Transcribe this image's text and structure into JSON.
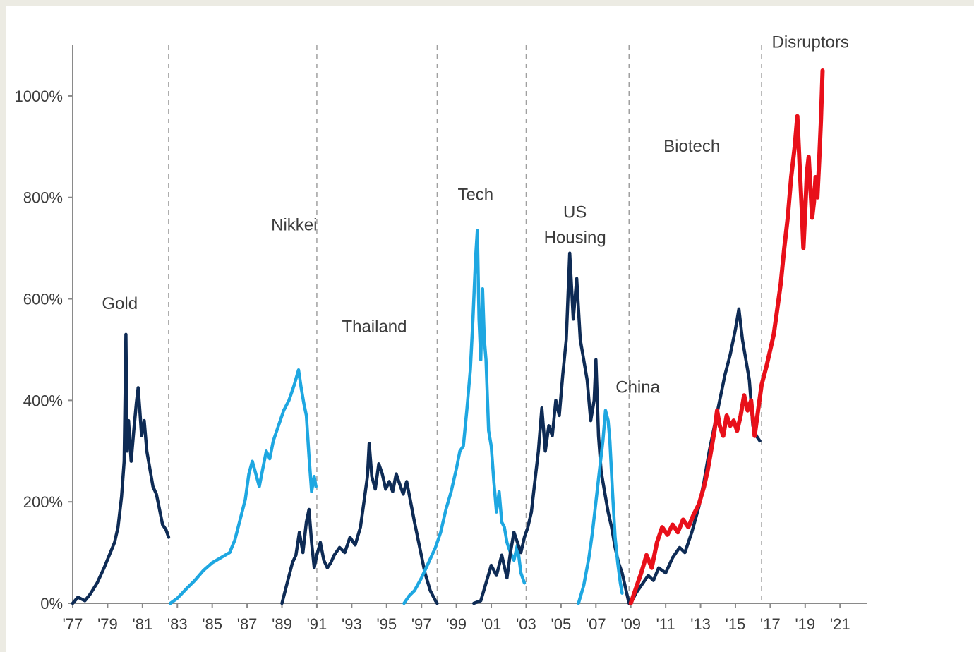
{
  "chart_data": {
    "type": "line",
    "title": "",
    "xlabel": "",
    "ylabel": "",
    "xlim": [
      1977,
      2021.8
    ],
    "ylim": [
      0,
      1100
    ],
    "y_ticks": [
      0,
      200,
      400,
      600,
      800,
      1000
    ],
    "y_tick_labels": [
      "0%",
      "200%",
      "400%",
      "600%",
      "800%",
      "1000%"
    ],
    "x_ticks": [
      1977,
      1979,
      1981,
      1983,
      1985,
      1987,
      1989,
      1991,
      1993,
      1995,
      1997,
      1999,
      2001,
      2003,
      2005,
      2007,
      2009,
      2011,
      2013,
      2015,
      2017,
      2019,
      2021
    ],
    "x_tick_labels": [
      "'77",
      "'79",
      "'81",
      "'83",
      "'85",
      "'87",
      "'89",
      "'91",
      "'93",
      "'95",
      "'97",
      "'99",
      "'01",
      "'03",
      "'05",
      "'07",
      "'09",
      "'11",
      "'13",
      "'15",
      "'17",
      "'19",
      "'21"
    ],
    "grid": false,
    "divider_lines_x": [
      1982.5,
      1991.0,
      1997.9,
      2003.0,
      2008.9,
      2016.5
    ],
    "colors": {
      "dark": "#0e2b55",
      "light": "#1ea7e1",
      "red": "#e8101a",
      "axis": "#8a8a8a",
      "divider": "#a0a0a0"
    },
    "annotations": [
      {
        "text": "Gold",
        "x": 1979.7,
        "y": 580
      },
      {
        "text": "Nikkei",
        "x": 1989.7,
        "y": 735
      },
      {
        "text": "Thailand",
        "x": 1994.3,
        "y": 535
      },
      {
        "text": "Tech",
        "x": 2000.1,
        "y": 795
      },
      {
        "text": "US",
        "x": 2005.8,
        "y": 760
      },
      {
        "text": "Housing",
        "x": 2005.8,
        "y": 710
      },
      {
        "text": "China",
        "x": 2009.4,
        "y": 415
      },
      {
        "text": "Biotech",
        "x": 2012.5,
        "y": 890
      },
      {
        "text": "Disruptors",
        "x": 2019.3,
        "y": 1095
      }
    ],
    "series": [
      {
        "color": "dark",
        "points": [
          [
            1977.0,
            0
          ],
          [
            1977.3,
            12
          ],
          [
            1977.7,
            5
          ],
          [
            1978.0,
            18
          ],
          [
            1978.4,
            40
          ],
          [
            1978.8,
            70
          ],
          [
            1979.1,
            95
          ],
          [
            1979.4,
            120
          ],
          [
            1979.6,
            150
          ],
          [
            1979.8,
            210
          ],
          [
            1979.95,
            280
          ],
          [
            1980.05,
            530
          ],
          [
            1980.12,
            300
          ],
          [
            1980.2,
            360
          ],
          [
            1980.35,
            280
          ],
          [
            1980.5,
            340
          ],
          [
            1980.65,
            395
          ],
          [
            1980.75,
            425
          ],
          [
            1980.85,
            380
          ],
          [
            1980.95,
            330
          ],
          [
            1981.1,
            360
          ],
          [
            1981.25,
            300
          ],
          [
            1981.4,
            270
          ],
          [
            1981.6,
            230
          ],
          [
            1981.8,
            215
          ],
          [
            1981.95,
            190
          ],
          [
            1982.15,
            155
          ],
          [
            1982.35,
            145
          ],
          [
            1982.5,
            130
          ]
        ]
      },
      {
        "color": "light",
        "points": [
          [
            1982.6,
            0
          ],
          [
            1983.0,
            10
          ],
          [
            1983.5,
            28
          ],
          [
            1984.0,
            45
          ],
          [
            1984.5,
            65
          ],
          [
            1985.0,
            80
          ],
          [
            1985.5,
            90
          ],
          [
            1986.0,
            100
          ],
          [
            1986.3,
            125
          ],
          [
            1986.6,
            165
          ],
          [
            1986.9,
            205
          ],
          [
            1987.1,
            255
          ],
          [
            1987.3,
            280
          ],
          [
            1987.5,
            255
          ],
          [
            1987.7,
            230
          ],
          [
            1987.9,
            265
          ],
          [
            1988.1,
            300
          ],
          [
            1988.3,
            285
          ],
          [
            1988.5,
            320
          ],
          [
            1988.8,
            350
          ],
          [
            1989.1,
            380
          ],
          [
            1989.4,
            400
          ],
          [
            1989.7,
            430
          ],
          [
            1989.95,
            460
          ],
          [
            1990.1,
            425
          ],
          [
            1990.25,
            395
          ],
          [
            1990.4,
            370
          ],
          [
            1990.55,
            290
          ],
          [
            1990.7,
            220
          ],
          [
            1990.85,
            250
          ],
          [
            1990.95,
            230
          ]
        ]
      },
      {
        "color": "dark",
        "points": [
          [
            1989.0,
            0
          ],
          [
            1989.3,
            40
          ],
          [
            1989.6,
            80
          ],
          [
            1989.8,
            95
          ],
          [
            1990.0,
            140
          ],
          [
            1990.2,
            100
          ],
          [
            1990.4,
            160
          ],
          [
            1990.55,
            185
          ],
          [
            1990.7,
            120
          ],
          [
            1990.85,
            70
          ],
          [
            1991.0,
            95
          ],
          [
            1991.2,
            120
          ],
          [
            1991.4,
            85
          ],
          [
            1991.6,
            70
          ],
          [
            1991.8,
            80
          ],
          [
            1992.0,
            95
          ],
          [
            1992.3,
            110
          ],
          [
            1992.6,
            100
          ],
          [
            1992.9,
            130
          ],
          [
            1993.2,
            115
          ],
          [
            1993.5,
            150
          ],
          [
            1993.7,
            200
          ],
          [
            1993.9,
            250
          ],
          [
            1994.0,
            315
          ],
          [
            1994.15,
            250
          ],
          [
            1994.35,
            225
          ],
          [
            1994.55,
            275
          ],
          [
            1994.75,
            255
          ],
          [
            1994.95,
            225
          ],
          [
            1995.15,
            240
          ],
          [
            1995.35,
            220
          ],
          [
            1995.55,
            255
          ],
          [
            1995.75,
            235
          ],
          [
            1995.95,
            215
          ],
          [
            1996.15,
            240
          ],
          [
            1996.35,
            205
          ],
          [
            1996.6,
            160
          ],
          [
            1996.9,
            110
          ],
          [
            1997.2,
            60
          ],
          [
            1997.5,
            25
          ],
          [
            1997.8,
            5
          ],
          [
            1997.9,
            0
          ]
        ]
      },
      {
        "color": "light",
        "points": [
          [
            1996.0,
            0
          ],
          [
            1996.3,
            15
          ],
          [
            1996.6,
            25
          ],
          [
            1997.0,
            50
          ],
          [
            1997.4,
            80
          ],
          [
            1997.8,
            110
          ],
          [
            1998.1,
            140
          ],
          [
            1998.4,
            185
          ],
          [
            1998.7,
            220
          ],
          [
            1999.0,
            265
          ],
          [
            1999.2,
            300
          ],
          [
            1999.4,
            310
          ],
          [
            1999.6,
            380
          ],
          [
            1999.8,
            460
          ],
          [
            1999.95,
            560
          ],
          [
            2000.1,
            680
          ],
          [
            2000.2,
            735
          ],
          [
            2000.3,
            560
          ],
          [
            2000.4,
            480
          ],
          [
            2000.5,
            620
          ],
          [
            2000.6,
            520
          ],
          [
            2000.7,
            480
          ],
          [
            2000.85,
            340
          ],
          [
            2001.0,
            310
          ],
          [
            2001.15,
            240
          ],
          [
            2001.3,
            180
          ],
          [
            2001.45,
            220
          ],
          [
            2001.6,
            160
          ],
          [
            2001.75,
            150
          ],
          [
            2001.9,
            120
          ],
          [
            2002.1,
            100
          ],
          [
            2002.3,
            85
          ],
          [
            2002.5,
            115
          ],
          [
            2002.7,
            60
          ],
          [
            2002.9,
            40
          ]
        ]
      },
      {
        "color": "dark",
        "points": [
          [
            2000.0,
            0
          ],
          [
            2000.4,
            5
          ],
          [
            2000.7,
            40
          ],
          [
            2001.0,
            75
          ],
          [
            2001.3,
            55
          ],
          [
            2001.6,
            95
          ],
          [
            2001.9,
            50
          ],
          [
            2002.1,
            100
          ],
          [
            2002.3,
            140
          ],
          [
            2002.5,
            120
          ],
          [
            2002.7,
            100
          ],
          [
            2002.9,
            130
          ],
          [
            2003.1,
            150
          ],
          [
            2003.3,
            180
          ],
          [
            2003.5,
            240
          ],
          [
            2003.7,
            300
          ],
          [
            2003.9,
            385
          ],
          [
            2004.1,
            300
          ],
          [
            2004.3,
            350
          ],
          [
            2004.5,
            330
          ],
          [
            2004.7,
            400
          ],
          [
            2004.9,
            370
          ],
          [
            2005.1,
            450
          ],
          [
            2005.3,
            520
          ],
          [
            2005.5,
            690
          ],
          [
            2005.7,
            560
          ],
          [
            2005.9,
            640
          ],
          [
            2006.1,
            520
          ],
          [
            2006.3,
            480
          ],
          [
            2006.5,
            440
          ],
          [
            2006.7,
            360
          ],
          [
            2006.9,
            400
          ],
          [
            2007.0,
            480
          ],
          [
            2007.15,
            330
          ],
          [
            2007.3,
            260
          ],
          [
            2007.5,
            220
          ],
          [
            2007.7,
            180
          ],
          [
            2007.9,
            150
          ],
          [
            2008.1,
            110
          ],
          [
            2008.3,
            80
          ],
          [
            2008.5,
            60
          ],
          [
            2008.7,
            30
          ],
          [
            2008.9,
            0
          ]
        ]
      },
      {
        "color": "light",
        "points": [
          [
            2006.0,
            0
          ],
          [
            2006.3,
            35
          ],
          [
            2006.6,
            90
          ],
          [
            2006.8,
            140
          ],
          [
            2007.0,
            200
          ],
          [
            2007.2,
            260
          ],
          [
            2007.4,
            320
          ],
          [
            2007.55,
            380
          ],
          [
            2007.7,
            360
          ],
          [
            2007.8,
            320
          ],
          [
            2007.95,
            220
          ],
          [
            2008.1,
            130
          ],
          [
            2008.25,
            80
          ],
          [
            2008.4,
            40
          ],
          [
            2008.5,
            20
          ]
        ]
      },
      {
        "color": "dark",
        "points": [
          [
            2009.0,
            0
          ],
          [
            2009.3,
            20
          ],
          [
            2009.6,
            35
          ],
          [
            2010.0,
            55
          ],
          [
            2010.3,
            45
          ],
          [
            2010.6,
            70
          ],
          [
            2011.0,
            60
          ],
          [
            2011.4,
            90
          ],
          [
            2011.8,
            110
          ],
          [
            2012.1,
            100
          ],
          [
            2012.5,
            140
          ],
          [
            2012.9,
            190
          ],
          [
            2013.2,
            240
          ],
          [
            2013.5,
            300
          ],
          [
            2013.8,
            350
          ],
          [
            2014.1,
            400
          ],
          [
            2014.4,
            450
          ],
          [
            2014.7,
            490
          ],
          [
            2015.0,
            540
          ],
          [
            2015.2,
            580
          ],
          [
            2015.4,
            520
          ],
          [
            2015.6,
            480
          ],
          [
            2015.8,
            440
          ],
          [
            2016.0,
            350
          ],
          [
            2016.2,
            330
          ],
          [
            2016.4,
            320
          ]
        ]
      },
      {
        "color": "red",
        "points": [
          [
            2009.0,
            0
          ],
          [
            2009.3,
            30
          ],
          [
            2009.6,
            60
          ],
          [
            2009.9,
            95
          ],
          [
            2010.2,
            70
          ],
          [
            2010.5,
            120
          ],
          [
            2010.8,
            150
          ],
          [
            2011.1,
            135
          ],
          [
            2011.4,
            155
          ],
          [
            2011.7,
            140
          ],
          [
            2012.0,
            165
          ],
          [
            2012.3,
            150
          ],
          [
            2012.6,
            175
          ],
          [
            2012.9,
            195
          ],
          [
            2013.2,
            230
          ],
          [
            2013.4,
            260
          ],
          [
            2013.6,
            300
          ],
          [
            2013.8,
            340
          ],
          [
            2013.95,
            380
          ],
          [
            2014.1,
            350
          ],
          [
            2014.3,
            330
          ],
          [
            2014.5,
            370
          ],
          [
            2014.7,
            350
          ],
          [
            2014.9,
            360
          ],
          [
            2015.1,
            340
          ],
          [
            2015.3,
            370
          ],
          [
            2015.5,
            410
          ],
          [
            2015.7,
            380
          ],
          [
            2015.9,
            400
          ],
          [
            2016.1,
            330
          ],
          [
            2016.3,
            380
          ],
          [
            2016.5,
            430
          ],
          [
            2016.8,
            470
          ],
          [
            2017.0,
            500
          ],
          [
            2017.2,
            530
          ],
          [
            2017.4,
            580
          ],
          [
            2017.6,
            630
          ],
          [
            2017.8,
            700
          ],
          [
            2018.0,
            760
          ],
          [
            2018.2,
            840
          ],
          [
            2018.4,
            900
          ],
          [
            2018.55,
            960
          ],
          [
            2018.7,
            850
          ],
          [
            2018.8,
            780
          ],
          [
            2018.9,
            700
          ],
          [
            2019.0,
            770
          ],
          [
            2019.1,
            850
          ],
          [
            2019.2,
            880
          ],
          [
            2019.3,
            820
          ],
          [
            2019.4,
            760
          ],
          [
            2019.5,
            790
          ],
          [
            2019.6,
            840
          ],
          [
            2019.7,
            800
          ],
          [
            2019.8,
            870
          ],
          [
            2019.9,
            950
          ],
          [
            2020.0,
            1050
          ]
        ]
      }
    ]
  }
}
